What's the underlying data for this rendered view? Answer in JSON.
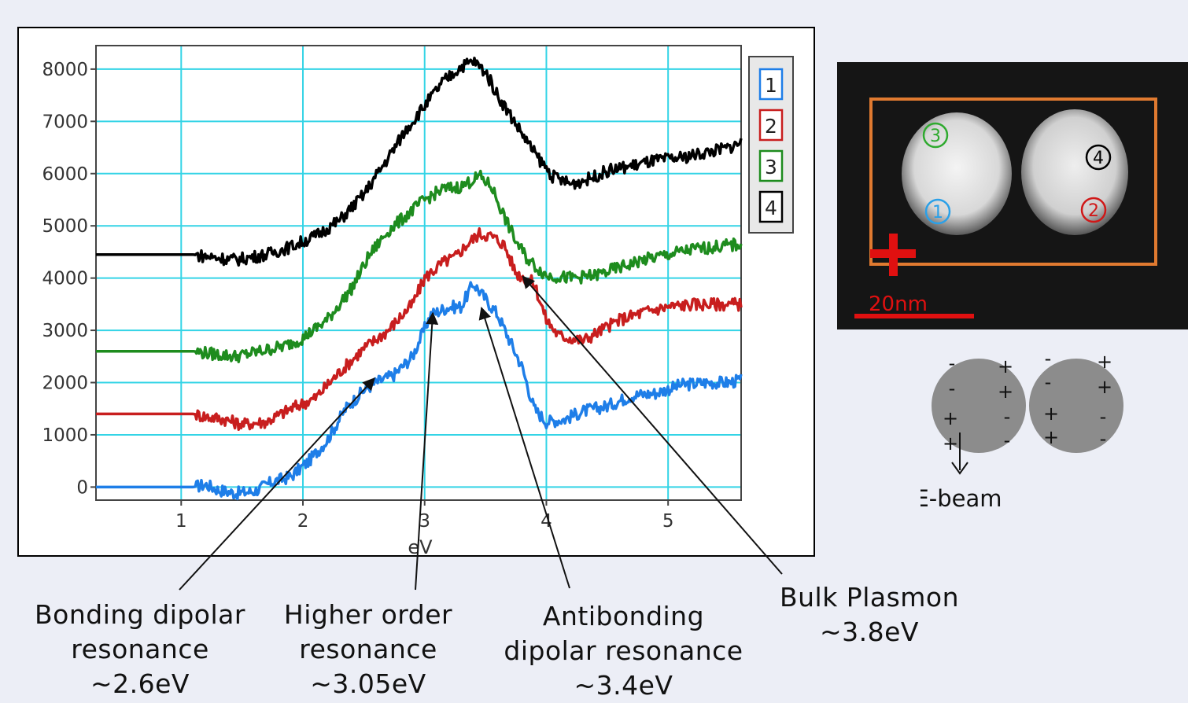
{
  "chart_data": {
    "type": "line",
    "title": "",
    "xlabel": "eV",
    "ylabel": "",
    "xlim": [
      0.3,
      5.6
    ],
    "ylim": [
      -250,
      8450
    ],
    "x_ticks": [
      1,
      2,
      3,
      4,
      5
    ],
    "y_ticks": [
      0,
      1000,
      2000,
      3000,
      4000,
      5000,
      6000,
      7000,
      8000
    ],
    "grid": true,
    "legend_position": "right",
    "flat_until_x": 1.12,
    "series": [
      {
        "name": "1",
        "color": "#1e7ee8",
        "points": [
          [
            0.3,
            0
          ],
          [
            1.1,
            0
          ],
          [
            1.2,
            50
          ],
          [
            1.3,
            -50
          ],
          [
            1.45,
            -120
          ],
          [
            1.6,
            -80
          ],
          [
            1.75,
            100
          ],
          [
            1.9,
            200
          ],
          [
            2.05,
            500
          ],
          [
            2.2,
            900
          ],
          [
            2.35,
            1500
          ],
          [
            2.5,
            1850
          ],
          [
            2.6,
            2000
          ],
          [
            2.75,
            2150
          ],
          [
            2.9,
            2500
          ],
          [
            3.05,
            3300
          ],
          [
            3.2,
            3450
          ],
          [
            3.3,
            3450
          ],
          [
            3.4,
            3900
          ],
          [
            3.5,
            3600
          ],
          [
            3.6,
            3300
          ],
          [
            3.7,
            2800
          ],
          [
            3.8,
            2300
          ],
          [
            3.9,
            1500
          ],
          [
            4.0,
            1250
          ],
          [
            4.15,
            1300
          ],
          [
            4.3,
            1450
          ],
          [
            4.5,
            1550
          ],
          [
            4.7,
            1750
          ],
          [
            4.9,
            1800
          ],
          [
            5.1,
            1950
          ],
          [
            5.3,
            2000
          ],
          [
            5.5,
            2000
          ],
          [
            5.6,
            2050
          ]
        ]
      },
      {
        "name": "2",
        "color": "#c81e1e",
        "points": [
          [
            0.3,
            1400
          ],
          [
            1.1,
            1400
          ],
          [
            1.2,
            1350
          ],
          [
            1.35,
            1300
          ],
          [
            1.5,
            1200
          ],
          [
            1.7,
            1250
          ],
          [
            1.9,
            1500
          ],
          [
            2.1,
            1700
          ],
          [
            2.3,
            2200
          ],
          [
            2.5,
            2650
          ],
          [
            2.7,
            3000
          ],
          [
            2.9,
            3500
          ],
          [
            3.0,
            4000
          ],
          [
            3.15,
            4300
          ],
          [
            3.25,
            4400
          ],
          [
            3.35,
            4650
          ],
          [
            3.45,
            4850
          ],
          [
            3.55,
            4800
          ],
          [
            3.65,
            4650
          ],
          [
            3.75,
            4100
          ],
          [
            3.9,
            3900
          ],
          [
            4.0,
            3200
          ],
          [
            4.1,
            2900
          ],
          [
            4.3,
            2800
          ],
          [
            4.45,
            3000
          ],
          [
            4.6,
            3200
          ],
          [
            4.8,
            3350
          ],
          [
            5.0,
            3450
          ],
          [
            5.2,
            3500
          ],
          [
            5.4,
            3500
          ],
          [
            5.6,
            3500
          ]
        ]
      },
      {
        "name": "3",
        "color": "#1e8c1e",
        "points": [
          [
            0.3,
            2600
          ],
          [
            1.1,
            2600
          ],
          [
            1.25,
            2550
          ],
          [
            1.45,
            2500
          ],
          [
            1.65,
            2600
          ],
          [
            1.85,
            2700
          ],
          [
            2.0,
            2850
          ],
          [
            2.2,
            3200
          ],
          [
            2.4,
            3800
          ],
          [
            2.55,
            4450
          ],
          [
            2.7,
            4900
          ],
          [
            2.85,
            5200
          ],
          [
            3.0,
            5500
          ],
          [
            3.15,
            5700
          ],
          [
            3.3,
            5750
          ],
          [
            3.45,
            5950
          ],
          [
            3.55,
            5750
          ],
          [
            3.65,
            5200
          ],
          [
            3.75,
            4700
          ],
          [
            3.85,
            4350
          ],
          [
            4.0,
            4050
          ],
          [
            4.2,
            4000
          ],
          [
            4.4,
            4050
          ],
          [
            4.6,
            4200
          ],
          [
            4.8,
            4350
          ],
          [
            5.0,
            4450
          ],
          [
            5.2,
            4550
          ],
          [
            5.4,
            4600
          ],
          [
            5.6,
            4650
          ]
        ]
      },
      {
        "name": "4",
        "color": "#000000",
        "points": [
          [
            0.3,
            4450
          ],
          [
            1.1,
            4450
          ],
          [
            1.25,
            4400
          ],
          [
            1.45,
            4350
          ],
          [
            1.7,
            4450
          ],
          [
            1.9,
            4600
          ],
          [
            2.1,
            4800
          ],
          [
            2.3,
            5100
          ],
          [
            2.5,
            5600
          ],
          [
            2.7,
            6300
          ],
          [
            2.85,
            6850
          ],
          [
            3.0,
            7300
          ],
          [
            3.15,
            7750
          ],
          [
            3.3,
            8050
          ],
          [
            3.4,
            8150
          ],
          [
            3.5,
            7950
          ],
          [
            3.6,
            7500
          ],
          [
            3.75,
            6950
          ],
          [
            3.9,
            6400
          ],
          [
            4.05,
            5950
          ],
          [
            4.2,
            5800
          ],
          [
            4.35,
            5900
          ],
          [
            4.5,
            6050
          ],
          [
            4.7,
            6150
          ],
          [
            4.9,
            6250
          ],
          [
            5.1,
            6300
          ],
          [
            5.3,
            6400
          ],
          [
            5.5,
            6500
          ],
          [
            5.6,
            6600
          ]
        ]
      }
    ],
    "annotations": [
      {
        "text": "Bonding dipolar\nresonance\n~2.6eV",
        "x": 2.6,
        "y": 2050
      },
      {
        "text": "Higher order\nresonance\n~3.05eV",
        "x": 3.08,
        "y": 3300
      },
      {
        "text": "Antibonding\ndipolar resonance\n~3.4eV",
        "x": 3.48,
        "y": 3400
      },
      {
        "text": "Bulk Plasmon\n~3.8eV",
        "x": 3.82,
        "y": 4000
      }
    ]
  },
  "stem_image": {
    "scale_label": "20nm",
    "scale_color": "#e01010",
    "roi_color": "#e07a30",
    "markers": [
      {
        "label": "3",
        "color": "#2faa2f"
      },
      {
        "label": "4",
        "color": "#000000"
      },
      {
        "label": "1",
        "color": "#2aa0e8"
      },
      {
        "label": "2",
        "color": "#d01818"
      }
    ]
  },
  "schematic": {
    "beam_label": "E-beam",
    "left_sphere_charges": [
      "-",
      "+",
      "-",
      "+",
      "+",
      "-",
      "+",
      "-"
    ],
    "right_sphere_charges": [
      "-",
      "+",
      "-",
      "+",
      "+",
      "-",
      "+",
      "-"
    ]
  }
}
